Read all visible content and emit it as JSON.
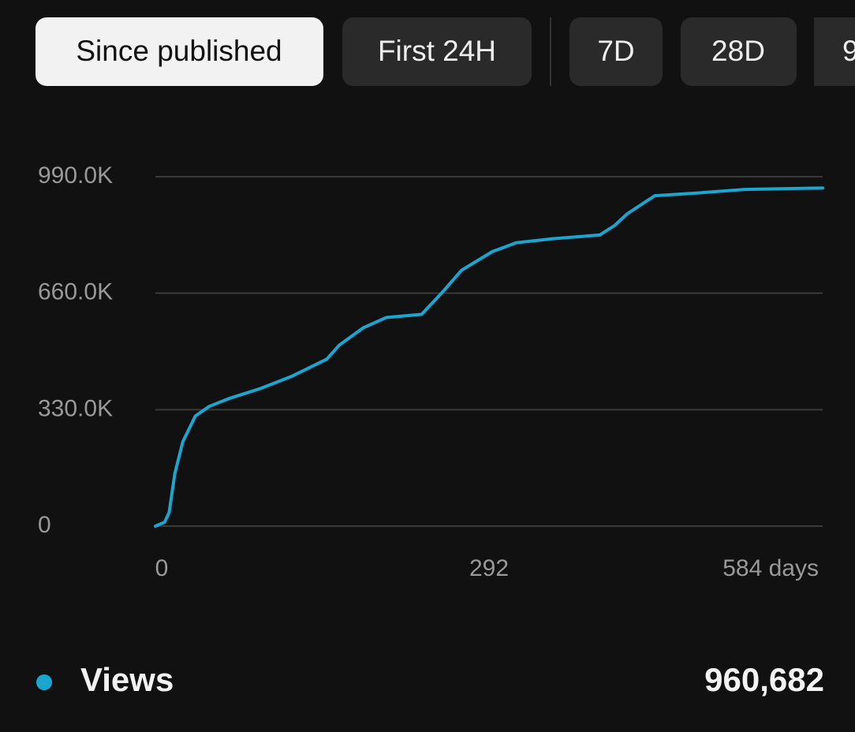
{
  "tabs": [
    "Since published",
    "First 24H",
    "7D",
    "28D",
    "9"
  ],
  "chart_data": {
    "type": "line",
    "x": [
      0,
      8,
      12,
      17,
      24,
      35,
      47,
      64,
      92,
      119,
      150,
      161,
      182,
      202,
      233,
      251,
      268,
      295,
      316,
      347,
      389,
      402,
      413,
      437,
      471,
      516,
      584
    ],
    "series": [
      {
        "name": "Views",
        "color": "#1aa6cf",
        "values": [
          0,
          11000,
          38000,
          149000,
          239000,
          312000,
          339000,
          361000,
          390000,
          424000,
          473000,
          513000,
          562000,
          591000,
          600000,
          662000,
          725000,
          778000,
          803000,
          814000,
          825000,
          852000,
          885000,
          936000,
          943000,
          954000,
          958000
        ]
      }
    ],
    "xlim": [
      0,
      584
    ],
    "xticks": [
      0,
      292,
      {
        "value": 584,
        "label": "584 days"
      }
    ],
    "ylim": [
      0,
      990000
    ],
    "yticks": [
      0,
      {
        "value": 330000,
        "label": "330.0K"
      },
      {
        "value": 660000,
        "label": "660.0K"
      },
      {
        "value": 990000,
        "label": "990.0K"
      }
    ],
    "grid": true
  },
  "summary_value": "960,682"
}
